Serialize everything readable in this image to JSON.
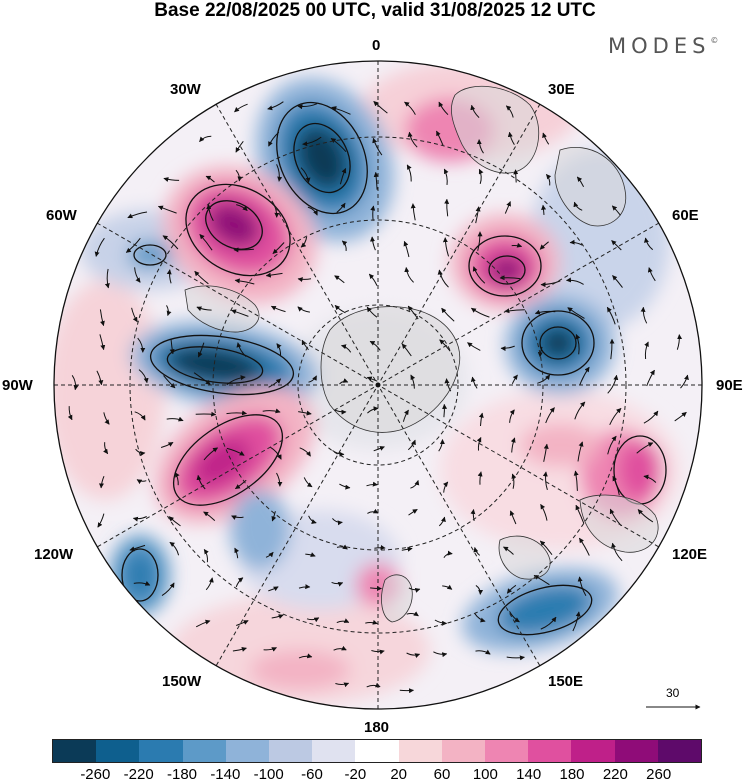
{
  "header": {
    "title": "Base 22/08/2025 00 UTC, valid 31/08/2025 12 UTC",
    "brand": "MODES",
    "brand_mark": "©"
  },
  "map": {
    "projection": "north polar stereographic",
    "longitude_labels": [
      "0",
      "30E",
      "60E",
      "90E",
      "120E",
      "150E",
      "180",
      "150W",
      "120W",
      "90W",
      "60W",
      "30W"
    ],
    "reference_vector": "30",
    "anomaly_centers": [
      {
        "name": "north-atlantic-low",
        "sign": "negative",
        "strength": 260
      },
      {
        "name": "greenland-high",
        "sign": "positive",
        "strength": 220
      },
      {
        "name": "scandinavia-high",
        "sign": "positive",
        "strength": 260
      },
      {
        "name": "west-siberia-low",
        "sign": "negative",
        "strength": 260
      },
      {
        "name": "hudson-bay-low",
        "sign": "negative",
        "strength": 260
      },
      {
        "name": "canada-high",
        "sign": "positive",
        "strength": 220
      },
      {
        "name": "east-asia-high",
        "sign": "positive",
        "strength": 140
      },
      {
        "name": "north-pacific-low",
        "sign": "negative",
        "strength": 180
      }
    ]
  },
  "colorbar": {
    "colors": [
      "#0b3a57",
      "#0e5f8e",
      "#2b7bb0",
      "#5d9ac8",
      "#8fb3d9",
      "#bcc9e3",
      "#e0e2f0",
      "#ffffff",
      "#f7d7da",
      "#f3b3c4",
      "#ee85b2",
      "#e0509f",
      "#bf2089",
      "#8f0c78",
      "#5e0a6a"
    ],
    "ticks": [
      "-260",
      "-220",
      "-180",
      "-140",
      "-100",
      "-60",
      "-20",
      "20",
      "60",
      "100",
      "140",
      "180",
      "220",
      "260"
    ]
  }
}
